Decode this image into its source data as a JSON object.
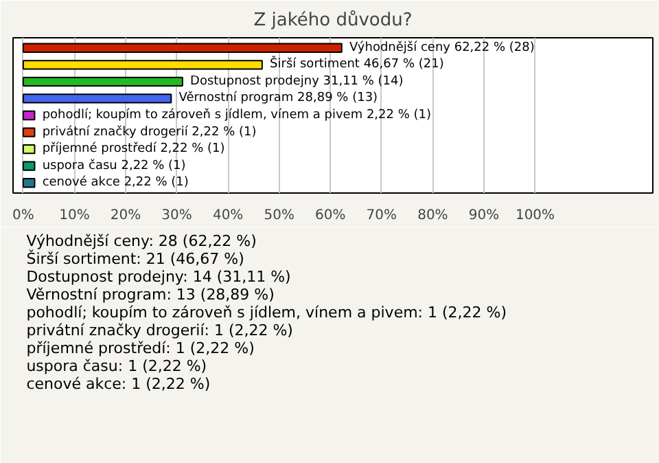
{
  "chart_data": {
    "type": "bar",
    "orientation": "horizontal",
    "title": "Z jakého důvodu?",
    "categories": [
      null,
      null,
      null,
      null,
      null,
      null,
      null,
      null,
      null
    ],
    "values": [
      62.22,
      46.67,
      31.11,
      28.89,
      2.22,
      2.22,
      2.22,
      2.22,
      2.22
    ],
    "colors": [
      "#cc2200",
      "#ffdd00",
      "#22bb22",
      "#4466ee",
      "#cc22cc",
      "#e04010",
      "#ccff66",
      "#119966",
      "#227788"
    ],
    "value_labels": [
      "Výhodnější ceny 62,22 % (28)",
      "Širší sortiment 46,67 % (21)",
      "Dostupnost prodejny 31,11 % (14)",
      "Věrnostní program 28,89 % (13)",
      "pohodlí; koupím to zároveň s jídlem, vínem a pivem 2,22 % (1)",
      "privátní značky drogerií 2,22 % (1)",
      "příjemné prostředí 2,22 % (1)",
      "uspora času 2,22 % (1)",
      "cenové akce 2,22 % (1)"
    ],
    "annotations": [
      "Výhodnější ceny: 28 (62,22 %)",
      "Širší sortiment: 21 (46,67 %)",
      "Dostupnost prodejny: 14 (31,11 %)",
      "Věrnostní program: 13 (28,89 %)",
      "pohodlí; koupím to zároveň s jídlem, vínem a pivem: 1 (2,22 %)",
      "privátní značky drogerií: 1 (2,22 %)",
      "příjemné prostředí: 1 (2,22 %)",
      "uspora času: 1 (2,22 %)",
      "cenové akce: 1 (2,22 %)"
    ],
    "xlim": [
      -2,
      123
    ],
    "xticks": [
      {
        "value": 0,
        "label": "0%"
      },
      {
        "value": 10,
        "label": "10%"
      },
      {
        "value": 20,
        "label": "20%"
      },
      {
        "value": 30,
        "label": "30%"
      },
      {
        "value": 40,
        "label": "40%"
      },
      {
        "value": 50,
        "label": "50%"
      },
      {
        "value": 60,
        "label": "60%"
      },
      {
        "value": 70,
        "label": "70%"
      },
      {
        "value": 80,
        "label": "80%"
      },
      {
        "value": 90,
        "label": "90%"
      },
      {
        "value": 100,
        "label": "100%"
      }
    ],
    "grid": "x",
    "tick_labels": "x"
  }
}
